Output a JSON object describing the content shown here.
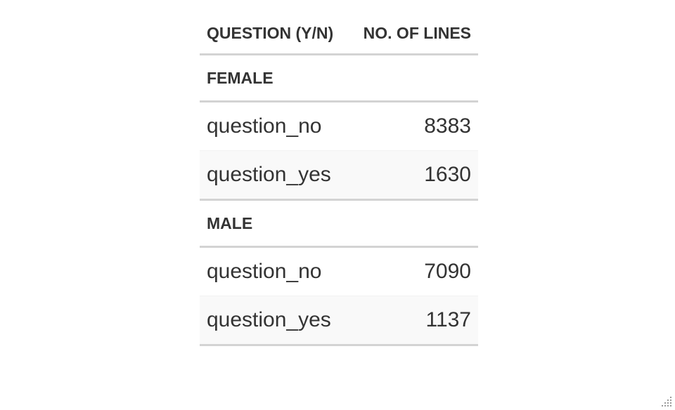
{
  "table": {
    "columns": [
      "QUESTION (Y/N)",
      "NO. OF LINES"
    ],
    "groups": [
      {
        "label": "FEMALE",
        "rows": [
          {
            "question": "question_no",
            "lines": "8383"
          },
          {
            "question": "question_yes",
            "lines": "1630"
          }
        ]
      },
      {
        "label": "MALE",
        "rows": [
          {
            "question": "question_no",
            "lines": "7090"
          },
          {
            "question": "question_yes",
            "lines": "1137"
          }
        ]
      }
    ]
  },
  "colors": {
    "text": "#333333",
    "rule": "#d3d3d3",
    "stripe": "#f9f9f9"
  },
  "icons": {
    "corner": "resize-grip-icon"
  }
}
